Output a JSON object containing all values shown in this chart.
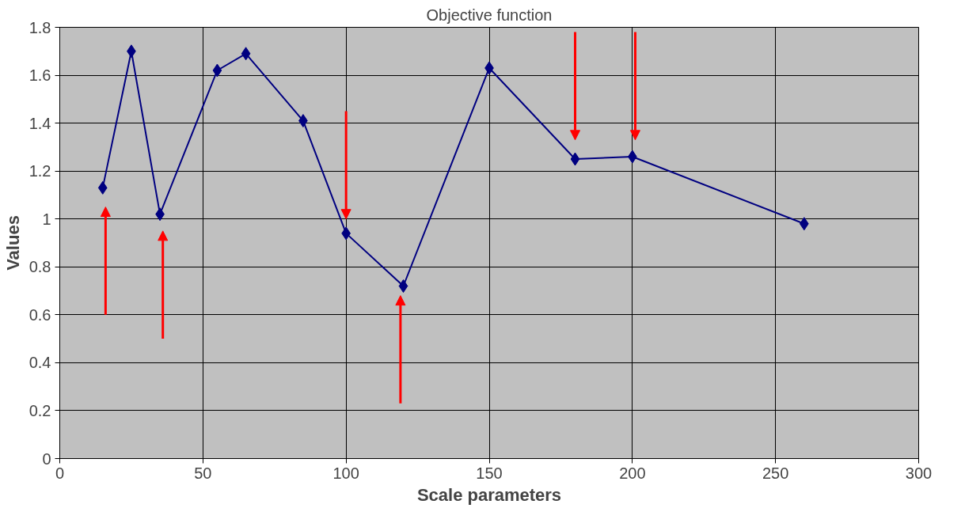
{
  "chart_data": {
    "type": "line",
    "title": "Objective function",
    "xlabel": "Scale parameters",
    "ylabel": "Values",
    "x": [
      15,
      25,
      35,
      55,
      65,
      85,
      100,
      120,
      150,
      180,
      200,
      260
    ],
    "series": [
      {
        "color": "#000080",
        "values": [
          1.13,
          1.7,
          1.02,
          1.62,
          1.69,
          1.41,
          0.94,
          0.72,
          1.63,
          1.25,
          1.26,
          0.98
        ]
      }
    ],
    "xlim": [
      0,
      300
    ],
    "xticks": [
      0,
      50,
      100,
      150,
      200,
      250,
      300
    ],
    "ylim": [
      0,
      1.8
    ],
    "yticks": [
      0,
      0.2,
      0.4,
      0.6,
      0.8,
      1,
      1.2,
      1.4,
      1.6,
      1.8
    ],
    "grid": true,
    "marker": "diamond",
    "line_style": "solid"
  }
}
